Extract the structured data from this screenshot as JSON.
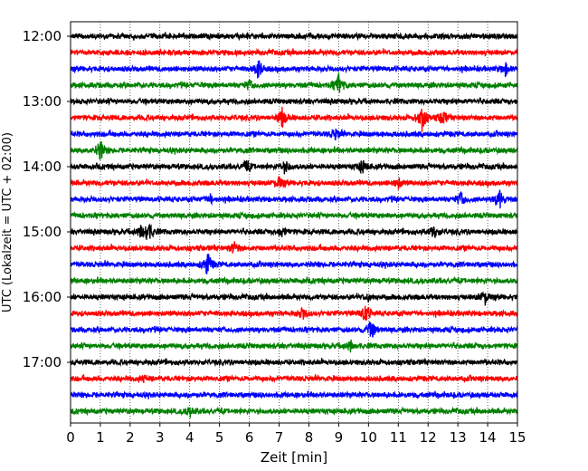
{
  "chart_data": {
    "type": "line",
    "title": "",
    "xlabel": "Zeit  [min]",
    "ylabel": "UTC (Lokalzeit = UTC + 02:00)",
    "xlim": [
      0,
      15
    ],
    "x_ticks": [
      0,
      1,
      2,
      3,
      4,
      5,
      6,
      7,
      8,
      9,
      10,
      11,
      12,
      13,
      14,
      15
    ],
    "y_tick_labels": [
      "12:00",
      "13:00",
      "14:00",
      "15:00",
      "16:00",
      "17:00"
    ],
    "row_start_times": [
      "12:00",
      "12:15",
      "12:30",
      "12:45",
      "13:00",
      "13:15",
      "13:30",
      "13:45",
      "14:00",
      "14:15",
      "14:30",
      "14:45",
      "15:00",
      "15:15",
      "15:30",
      "15:45",
      "16:00",
      "16:15",
      "16:30",
      "16:45",
      "17:00",
      "17:15",
      "17:30",
      "17:45"
    ],
    "row_colors": [
      "#000000",
      "#ff0000",
      "#0000ff",
      "#008000"
    ],
    "grid": "vertical dotted",
    "events": [
      {
        "row": 2,
        "minute": 6.3,
        "amp": 1.0
      },
      {
        "row": 2,
        "minute": 14.6,
        "amp": 0.6
      },
      {
        "row": 3,
        "minute": 6.0,
        "amp": 0.4
      },
      {
        "row": 3,
        "minute": 9.0,
        "amp": 1.0
      },
      {
        "row": 5,
        "minute": 7.1,
        "amp": 0.9
      },
      {
        "row": 5,
        "minute": 11.8,
        "amp": 1.3
      },
      {
        "row": 5,
        "minute": 12.5,
        "amp": 0.7
      },
      {
        "row": 6,
        "minute": 8.9,
        "amp": 0.5
      },
      {
        "row": 7,
        "minute": 1.0,
        "amp": 1.1
      },
      {
        "row": 8,
        "minute": 5.9,
        "amp": 0.5
      },
      {
        "row": 8,
        "minute": 7.2,
        "amp": 0.6
      },
      {
        "row": 8,
        "minute": 9.8,
        "amp": 0.6
      },
      {
        "row": 9,
        "minute": 7.0,
        "amp": 0.6
      },
      {
        "row": 9,
        "minute": 11.0,
        "amp": 0.5
      },
      {
        "row": 10,
        "minute": 4.7,
        "amp": 0.4
      },
      {
        "row": 10,
        "minute": 13.1,
        "amp": 0.6
      },
      {
        "row": 10,
        "minute": 14.4,
        "amp": 0.9
      },
      {
        "row": 12,
        "minute": 2.4,
        "amp": 0.6
      },
      {
        "row": 12,
        "minute": 2.6,
        "amp": 1.0
      },
      {
        "row": 12,
        "minute": 7.1,
        "amp": 0.5
      },
      {
        "row": 12,
        "minute": 12.2,
        "amp": 0.6
      },
      {
        "row": 13,
        "minute": 5.5,
        "amp": 0.5
      },
      {
        "row": 14,
        "minute": 4.6,
        "amp": 1.2
      },
      {
        "row": 16,
        "minute": 10.0,
        "amp": 0.3
      },
      {
        "row": 16,
        "minute": 13.9,
        "amp": 0.7
      },
      {
        "row": 17,
        "minute": 7.8,
        "amp": 0.5
      },
      {
        "row": 17,
        "minute": 9.9,
        "amp": 1.0
      },
      {
        "row": 18,
        "minute": 10.1,
        "amp": 0.9
      },
      {
        "row": 19,
        "minute": 9.4,
        "amp": 0.5
      },
      {
        "row": 21,
        "minute": 2.5,
        "amp": 0.3
      },
      {
        "row": 23,
        "minute": 4.0,
        "amp": 0.5
      }
    ]
  }
}
